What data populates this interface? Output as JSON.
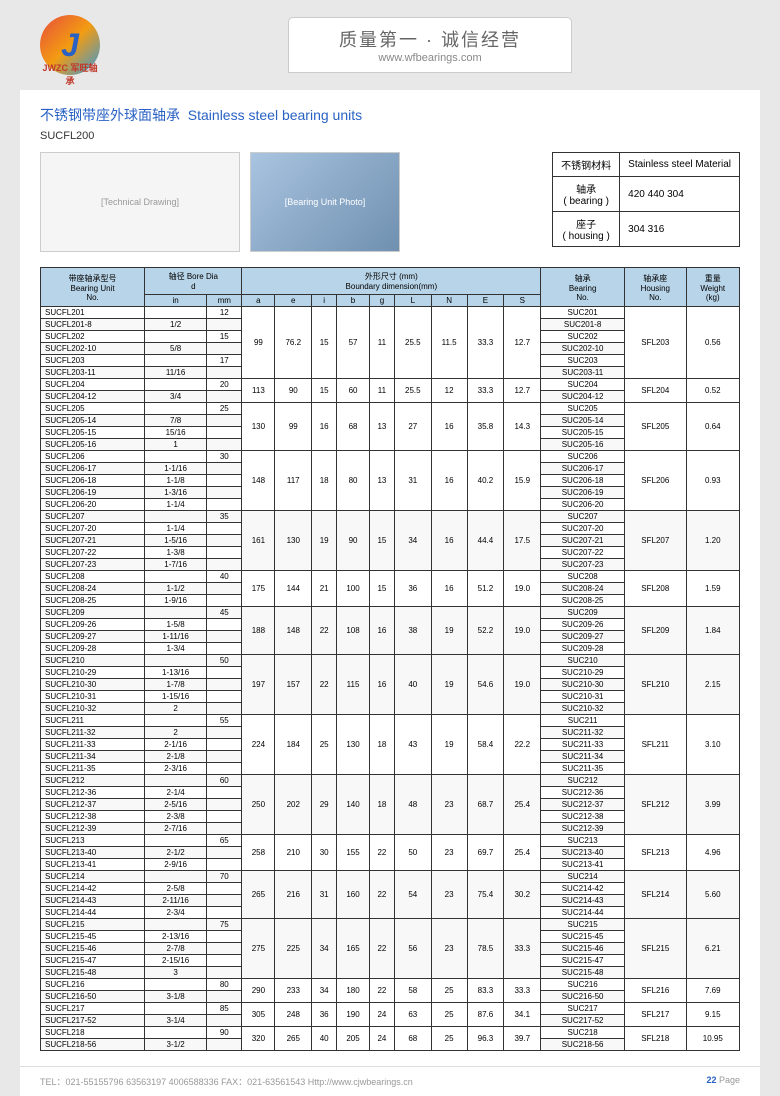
{
  "header": {
    "logo_letter": "J",
    "logo_text": "JWZC 军旺轴承",
    "banner_title": "质量第一 · 诚信经营",
    "banner_url": "www.wfbearings.com"
  },
  "section": {
    "title_cn": "不锈钢带座外球面轴承",
    "title_en": "Stainless steel bearing units",
    "subtitle": "SUCFL200"
  },
  "material": {
    "r1c1": "不锈钢材料",
    "r1c2": "Stainless steel Material",
    "r2c1": "轴承\n( bearing )",
    "r2c2": "420 440 304",
    "r3c1": "座子\n( housing )",
    "r3c2": "304 316"
  },
  "diagram_label": "[Technical Drawing]",
  "product_label": "[Bearing Unit Photo]",
  "watermark": "军旺轴承",
  "table": {
    "headers": {
      "unit": "带座轴承型号\nBearing Unit\nNo.",
      "bore": "轴径 Bore Dia\nd",
      "boundary": "外形尺寸 (mm)\nBoundary dimension(mm)",
      "bearing": "轴承\nBearing\nNo.",
      "housing": "轴承座\nHousing\nNo.",
      "weight": "重量\nWeight\n(kg)",
      "in": "in",
      "mm": "mm",
      "a": "a",
      "e": "e",
      "i": "i",
      "b": "b",
      "g": "g",
      "L": "L",
      "N": "N",
      "E": "E",
      "S": "S"
    },
    "groups": [
      {
        "dims": [
          "99",
          "76.2",
          "15",
          "57",
          "11",
          "25.5",
          "11.5",
          "33.3",
          "12.7"
        ],
        "housing": "SFL203",
        "weight": "0.56",
        "rows": [
          {
            "u": "SUCFL201",
            "in": "",
            "mm": "12",
            "b": "SUC201"
          },
          {
            "u": "SUCFL201-8",
            "in": "1/2",
            "mm": "",
            "b": "SUC201-8"
          },
          {
            "u": "SUCFL202",
            "in": "",
            "mm": "15",
            "b": "SUC202"
          },
          {
            "u": "SUCFL202-10",
            "in": "5/8",
            "mm": "",
            "b": "SUC202-10"
          },
          {
            "u": "SUCFL203",
            "in": "",
            "mm": "17",
            "b": "SUC203"
          },
          {
            "u": "SUCFL203-11",
            "in": "11/16",
            "mm": "",
            "b": "SUC203-11"
          }
        ]
      },
      {
        "dims": [
          "113",
          "90",
          "15",
          "60",
          "11",
          "25.5",
          "12",
          "33.3",
          "12.7"
        ],
        "housing": "SFL204",
        "weight": "0.52",
        "rows": [
          {
            "u": "SUCFL204",
            "in": "",
            "mm": "20",
            "b": "SUC204"
          },
          {
            "u": "SUCFL204-12",
            "in": "3/4",
            "mm": "",
            "b": "SUC204-12"
          }
        ]
      },
      {
        "dims": [
          "130",
          "99",
          "16",
          "68",
          "13",
          "27",
          "16",
          "35.8",
          "14.3"
        ],
        "housing": "SFL205",
        "weight": "0.64",
        "rows": [
          {
            "u": "SUCFL205",
            "in": "",
            "mm": "25",
            "b": "SUC205"
          },
          {
            "u": "SUCFL205-14",
            "in": "7/8",
            "mm": "",
            "b": "SUC205-14"
          },
          {
            "u": "SUCFL205-15",
            "in": "15/16",
            "mm": "",
            "b": "SUC205-15"
          },
          {
            "u": "SUCFL205-16",
            "in": "1",
            "mm": "",
            "b": "SUC205-16"
          }
        ]
      },
      {
        "dims": [
          "148",
          "117",
          "18",
          "80",
          "13",
          "31",
          "16",
          "40.2",
          "15.9"
        ],
        "housing": "SFL206",
        "weight": "0.93",
        "rows": [
          {
            "u": "SUCFL206",
            "in": "",
            "mm": "30",
            "b": "SUC206"
          },
          {
            "u": "SUCFL206-17",
            "in": "1-1/16",
            "mm": "",
            "b": "SUC206-17"
          },
          {
            "u": "SUCFL206-18",
            "in": "1-1/8",
            "mm": "",
            "b": "SUC206-18"
          },
          {
            "u": "SUCFL206-19",
            "in": "1-3/16",
            "mm": "",
            "b": "SUC206-19"
          },
          {
            "u": "SUCFL206-20",
            "in": "1-1/4",
            "mm": "",
            "b": "SUC206-20"
          }
        ]
      },
      {
        "dims": [
          "161",
          "130",
          "19",
          "90",
          "15",
          "34",
          "16",
          "44.4",
          "17.5"
        ],
        "housing": "SFL207",
        "weight": "1.20",
        "rows": [
          {
            "u": "SUCFL207",
            "in": "",
            "mm": "35",
            "b": "SUC207"
          },
          {
            "u": "SUCFL207-20",
            "in": "1-1/4",
            "mm": "",
            "b": "SUC207-20"
          },
          {
            "u": "SUCFL207-21",
            "in": "1-5/16",
            "mm": "",
            "b": "SUC207-21"
          },
          {
            "u": "SUCFL207-22",
            "in": "1-3/8",
            "mm": "",
            "b": "SUC207-22"
          },
          {
            "u": "SUCFL207-23",
            "in": "1-7/16",
            "mm": "",
            "b": "SUC207-23"
          }
        ]
      },
      {
        "dims": [
          "175",
          "144",
          "21",
          "100",
          "15",
          "36",
          "16",
          "51.2",
          "19.0"
        ],
        "housing": "SFL208",
        "weight": "1.59",
        "rows": [
          {
            "u": "SUCFL208",
            "in": "",
            "mm": "40",
            "b": "SUC208"
          },
          {
            "u": "SUCFL208-24",
            "in": "1-1/2",
            "mm": "",
            "b": "SUC208-24"
          },
          {
            "u": "SUCFL208-25",
            "in": "1-9/16",
            "mm": "",
            "b": "SUC208-25"
          }
        ]
      },
      {
        "dims": [
          "188",
          "148",
          "22",
          "108",
          "16",
          "38",
          "19",
          "52.2",
          "19.0"
        ],
        "housing": "SFL209",
        "weight": "1.84",
        "rows": [
          {
            "u": "SUCFL209",
            "in": "",
            "mm": "45",
            "b": "SUC209"
          },
          {
            "u": "SUCFL209-26",
            "in": "1-5/8",
            "mm": "",
            "b": "SUC209-26"
          },
          {
            "u": "SUCFL209-27",
            "in": "1-11/16",
            "mm": "",
            "b": "SUC209-27"
          },
          {
            "u": "SUCFL209-28",
            "in": "1-3/4",
            "mm": "",
            "b": "SUC209-28"
          }
        ]
      },
      {
        "dims": [
          "197",
          "157",
          "22",
          "115",
          "16",
          "40",
          "19",
          "54.6",
          "19.0"
        ],
        "housing": "SFL210",
        "weight": "2.15",
        "rows": [
          {
            "u": "SUCFL210",
            "in": "",
            "mm": "50",
            "b": "SUC210"
          },
          {
            "u": "SUCFL210-29",
            "in": "1-13/16",
            "mm": "",
            "b": "SUC210-29"
          },
          {
            "u": "SUCFL210-30",
            "in": "1-7/8",
            "mm": "",
            "b": "SUC210-30"
          },
          {
            "u": "SUCFL210-31",
            "in": "1-15/16",
            "mm": "",
            "b": "SUC210-31"
          },
          {
            "u": "SUCFL210-32",
            "in": "2",
            "mm": "",
            "b": "SUC210-32"
          }
        ]
      },
      {
        "dims": [
          "224",
          "184",
          "25",
          "130",
          "18",
          "43",
          "19",
          "58.4",
          "22.2"
        ],
        "housing": "SFL211",
        "weight": "3.10",
        "rows": [
          {
            "u": "SUCFL211",
            "in": "",
            "mm": "55",
            "b": "SUC211"
          },
          {
            "u": "SUCFL211-32",
            "in": "2",
            "mm": "",
            "b": "SUC211-32"
          },
          {
            "u": "SUCFL211-33",
            "in": "2-1/16",
            "mm": "",
            "b": "SUC211-33"
          },
          {
            "u": "SUCFL211-34",
            "in": "2-1/8",
            "mm": "",
            "b": "SUC211-34"
          },
          {
            "u": "SUCFL211-35",
            "in": "2-3/16",
            "mm": "",
            "b": "SUC211-35"
          }
        ]
      },
      {
        "dims": [
          "250",
          "202",
          "29",
          "140",
          "18",
          "48",
          "23",
          "68.7",
          "25.4"
        ],
        "housing": "SFL212",
        "weight": "3.99",
        "rows": [
          {
            "u": "SUCFL212",
            "in": "",
            "mm": "60",
            "b": "SUC212"
          },
          {
            "u": "SUCFL212-36",
            "in": "2-1/4",
            "mm": "",
            "b": "SUC212-36"
          },
          {
            "u": "SUCFL212-37",
            "in": "2-5/16",
            "mm": "",
            "b": "SUC212-37"
          },
          {
            "u": "SUCFL212-38",
            "in": "2-3/8",
            "mm": "",
            "b": "SUC212-38"
          },
          {
            "u": "SUCFL212-39",
            "in": "2-7/16",
            "mm": "",
            "b": "SUC212-39"
          }
        ]
      },
      {
        "dims": [
          "258",
          "210",
          "30",
          "155",
          "22",
          "50",
          "23",
          "69.7",
          "25.4"
        ],
        "housing": "SFL213",
        "weight": "4.96",
        "rows": [
          {
            "u": "SUCFL213",
            "in": "",
            "mm": "65",
            "b": "SUC213"
          },
          {
            "u": "SUCFL213-40",
            "in": "2-1/2",
            "mm": "",
            "b": "SUC213-40"
          },
          {
            "u": "SUCFL213-41",
            "in": "2-9/16",
            "mm": "",
            "b": "SUC213-41"
          }
        ]
      },
      {
        "dims": [
          "265",
          "216",
          "31",
          "160",
          "22",
          "54",
          "23",
          "75.4",
          "30.2"
        ],
        "housing": "SFL214",
        "weight": "5.60",
        "rows": [
          {
            "u": "SUCFL214",
            "in": "",
            "mm": "70",
            "b": "SUC214"
          },
          {
            "u": "SUCFL214-42",
            "in": "2-5/8",
            "mm": "",
            "b": "SUC214-42"
          },
          {
            "u": "SUCFL214-43",
            "in": "2-11/16",
            "mm": "",
            "b": "SUC214-43"
          },
          {
            "u": "SUCFL214-44",
            "in": "2-3/4",
            "mm": "",
            "b": "SUC214-44"
          }
        ]
      },
      {
        "dims": [
          "275",
          "225",
          "34",
          "165",
          "22",
          "56",
          "23",
          "78.5",
          "33.3"
        ],
        "housing": "SFL215",
        "weight": "6.21",
        "rows": [
          {
            "u": "SUCFL215",
            "in": "",
            "mm": "75",
            "b": "SUC215"
          },
          {
            "u": "SUCFL215-45",
            "in": "2-13/16",
            "mm": "",
            "b": "SUC215-45"
          },
          {
            "u": "SUCFL215-46",
            "in": "2-7/8",
            "mm": "",
            "b": "SUC215-46"
          },
          {
            "u": "SUCFL215-47",
            "in": "2-15/16",
            "mm": "",
            "b": "SUC215-47"
          },
          {
            "u": "SUCFL215-48",
            "in": "3",
            "mm": "",
            "b": "SUC215-48"
          }
        ]
      },
      {
        "dims": [
          "290",
          "233",
          "34",
          "180",
          "22",
          "58",
          "25",
          "83.3",
          "33.3"
        ],
        "housing": "SFL216",
        "weight": "7.69",
        "rows": [
          {
            "u": "SUCFL216",
            "in": "",
            "mm": "80",
            "b": "SUC216"
          },
          {
            "u": "SUCFL216-50",
            "in": "3-1/8",
            "mm": "",
            "b": "SUC216-50"
          }
        ]
      },
      {
        "dims": [
          "305",
          "248",
          "36",
          "190",
          "24",
          "63",
          "25",
          "87.6",
          "34.1"
        ],
        "housing": "SFL217",
        "weight": "9.15",
        "rows": [
          {
            "u": "SUCFL217",
            "in": "",
            "mm": "85",
            "b": "SUC217"
          },
          {
            "u": "SUCFL217-52",
            "in": "3-1/4",
            "mm": "",
            "b": "SUC217-52"
          }
        ]
      },
      {
        "dims": [
          "320",
          "265",
          "40",
          "205",
          "24",
          "68",
          "25",
          "96.3",
          "39.7"
        ],
        "housing": "SFL218",
        "weight": "10.95",
        "rows": [
          {
            "u": "SUCFL218",
            "in": "",
            "mm": "90",
            "b": "SUC218"
          },
          {
            "u": "SUCFL218-56",
            "in": "3-1/2",
            "mm": "",
            "b": "SUC218-56"
          }
        ]
      }
    ]
  },
  "footer": {
    "tel": "TEL：021-55155796   63563197   4006588336   FAX：021-63561543   Http://www.cjwbearings.cn",
    "page_label": "Page",
    "page_num": "22"
  }
}
